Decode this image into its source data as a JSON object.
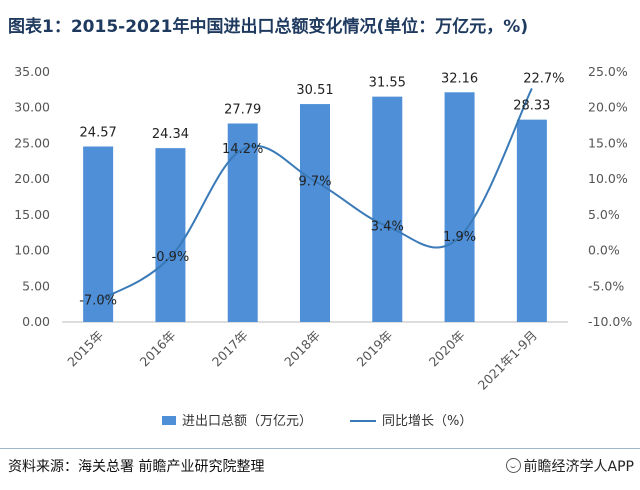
{
  "title": "图表1：2015-2021年中国进出口总额变化情况(单位：万亿元，%)",
  "source": "资料来源：海关总署 前瞻产业研究院整理",
  "brand": "前瞻经济学人APP",
  "colors": {
    "bar": "#4e8fd8",
    "line": "#3a7ab8",
    "axis": "#bbbbbb"
  },
  "chart_data": {
    "type": "bar",
    "categories": [
      "2015年",
      "2016年",
      "2017年",
      "2018年",
      "2019年",
      "2020年",
      "2021年1-9月"
    ],
    "series": [
      {
        "name": "进出口总额（万亿元）",
        "type": "bar",
        "axis": "left",
        "values": [
          24.57,
          24.34,
          27.79,
          30.51,
          31.55,
          32.16,
          28.33
        ],
        "labels": [
          "24.57",
          "24.34",
          "27.79",
          "30.51",
          "31.55",
          "32.16",
          "28.33"
        ]
      },
      {
        "name": "同比增长（%）",
        "type": "line",
        "axis": "right",
        "values": [
          -7.0,
          -0.9,
          14.2,
          9.7,
          3.4,
          1.9,
          22.7
        ],
        "labels": [
          "-7.0%",
          "-0.9%",
          "14.2%",
          "9.7%",
          "3.4%",
          "1.9%",
          "22.7%"
        ]
      }
    ],
    "y_left": {
      "range": [
        0,
        35
      ],
      "ticks": [
        "0.00",
        "5.00",
        "10.00",
        "15.00",
        "20.00",
        "25.00",
        "30.00",
        "35.00"
      ]
    },
    "y_right": {
      "range": [
        -10,
        25
      ],
      "ticks": [
        "-10.0%",
        "-5.0%",
        "0.0%",
        "5.0%",
        "10.0%",
        "15.0%",
        "20.0%",
        "25.0%"
      ]
    },
    "legend_position": "bottom"
  }
}
